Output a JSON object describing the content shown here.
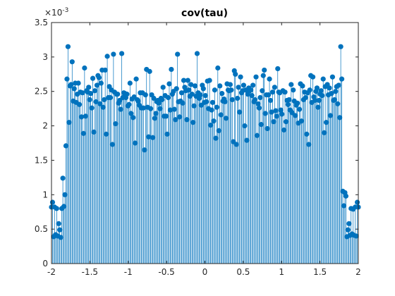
{
  "chart_data": {
    "type": "scatter",
    "style": "stem",
    "title": "cov(tau)",
    "xlabel": "",
    "ylabel": "",
    "exponent_label": "×10",
    "exponent_power": "-3",
    "xlim": [
      -2,
      2
    ],
    "ylim": [
      0,
      3.5
    ],
    "xticks": [
      -2,
      -1.5,
      -1,
      -0.5,
      0,
      0.5,
      1,
      1.5,
      2
    ],
    "xtick_labels": [
      "-2",
      "-1.5",
      "-1",
      "-0.5",
      "0",
      "0.5",
      "1",
      "1.5",
      "2"
    ],
    "yticks": [
      0,
      0.5,
      1,
      1.5,
      2,
      2.5,
      3,
      3.5
    ],
    "ytick_labels": [
      "0",
      "0.5",
      "1",
      "1.5",
      "2",
      "2.5",
      "3",
      "3.5"
    ],
    "grid": false,
    "marker_color": "#0072BD",
    "values": [
      0.82,
      0.89,
      0.39,
      0.82,
      0.42,
      0.8,
      0.4,
      0.58,
      0.49,
      0.38,
      0.8,
      1.24,
      0.83,
      1.0,
      1.71,
      2.68,
      3.15,
      2.05,
      2.58,
      2.6,
      2.93,
      2.36,
      2.54,
      2.62,
      2.34,
      2.46,
      2.62,
      2.31,
      2.49,
      2.13,
      2.48,
      1.89,
      2.84,
      2.14,
      2.51,
      2.49,
      2.56,
      2.38,
      2.47,
      2.26,
      2.69,
      1.91,
      2.51,
      2.35,
      2.59,
      2.73,
      2.7,
      2.32,
      2.62,
      2.81,
      2.27,
      2.38,
      2.81,
      1.88,
      3.01,
      2.41,
      2.57,
      2.41,
      2.52,
      1.73,
      3.04,
      2.49,
      2.03,
      2.46,
      2.46,
      2.33,
      2.37,
      2.24,
      3.05,
      2.41,
      2.48,
      2.47,
      2.41,
      2.46,
      2.29,
      2.31,
      2.62,
      2.18,
      2.39,
      2.12,
      2.42,
      1.75,
      2.68,
      2.38,
      2.36,
      2.3,
      2.48,
      2.26,
      2.48,
      2.26,
      1.65,
      2.45,
      2.82,
      2.27,
      1.84,
      2.79,
      2.25,
      2.45,
      1.83,
      2.4,
      2.11,
      2.18,
      2.35,
      2.37,
      2.33,
      2.25,
      2.4,
      2.38,
      2.56,
      2.14,
      2.44,
      2.14,
      1.88,
      2.41,
      2.61,
      2.23,
      2.82,
      2.46,
      2.5,
      2.24,
      2.09,
      2.54,
      3.04,
      2.35,
      2.13,
      2.36,
      2.48,
      2.33,
      2.66,
      2.56,
      2.51,
      2.09,
      2.66,
      2.52,
      2.43,
      2.6,
      2.46,
      2.05,
      2.29,
      2.58,
      2.43,
      3.05,
      2.48,
      2.4,
      2.45,
      2.3,
      2.59,
      2.54,
      2.34,
      2.44,
      2.35,
      2.65,
      2.25,
      2.66,
      2.01,
      2.23,
      2.34,
      2.07,
      2.52,
      1.82,
      2.27,
      2.84,
      1.93,
      2.58,
      2.16,
      2.47,
      2.36,
      2.39,
      2.35,
      2.11,
      2.61,
      2.52,
      2.51,
      2.6,
      2.52,
      2.38,
      1.77,
      2.8,
      2.75,
      1.73,
      2.4,
      2.56,
      2.2,
      2.71,
      2.48,
      2.51,
      2.59,
      2.0,
      2.52,
      1.79,
      2.46,
      2.55,
      2.51,
      2.52,
      2.44,
      2.59,
      2.35,
      2.38,
      2.71,
      1.86,
      2.32,
      2.26,
      2.41,
      2.02,
      2.51,
      2.73,
      2.81,
      2.18,
      2.45,
      1.96,
      2.45,
      2.68,
      2.37,
      2.2,
      2.49,
      2.06,
      2.56,
      2.22,
      2.14,
      2.83,
      2.49,
      2.48,
      2.23,
      2.17,
      2.51,
      1.94,
      2.49,
      2.06,
      2.37,
      2.31,
      2.38,
      2.23,
      2.6,
      2.19,
      2.52,
      2.36,
      2.15,
      2.3,
      2.33,
      2.04,
      2.24,
      2.61,
      2.07,
      2.58,
      2.38,
      2.49,
      2.41,
      1.88,
      2.48,
      1.73,
      2.52,
      2.73,
      2.34,
      2.71,
      2.42,
      2.37,
      2.5,
      2.55,
      2.27,
      2.37,
      2.46,
      2.51,
      2.44,
      2.68,
      1.9,
      2.57,
      2.05,
      2.6,
      2.45,
      2.55,
      2.15,
      2.47,
      2.71,
      2.37,
      2.38,
      2.5,
      2.57,
      2.32,
      2.59,
      2.12,
      3.15,
      2.68,
      1.05,
      0.84,
      1.03,
      0.98,
      0.39,
      0.49,
      0.58,
      0.41,
      0.8,
      0.43,
      0.79,
      0.41,
      0.82,
      0.4,
      0.89,
      0.82
    ]
  }
}
